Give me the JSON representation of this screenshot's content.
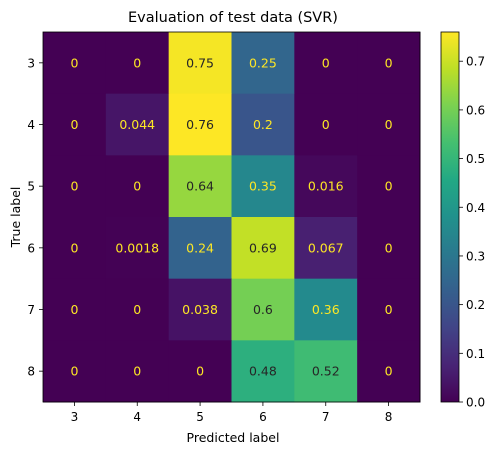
{
  "chart_data": {
    "type": "heatmap",
    "title": "Evaluation of test data (SVR)",
    "xlabel": "Predicted label",
    "ylabel": "True label",
    "x_categories": [
      "3",
      "4",
      "5",
      "6",
      "7",
      "8"
    ],
    "y_categories": [
      "3",
      "4",
      "5",
      "6",
      "7",
      "8"
    ],
    "values": [
      [
        0,
        0,
        0.75,
        0.25,
        0,
        0
      ],
      [
        0,
        0.044,
        0.76,
        0.2,
        0,
        0
      ],
      [
        0,
        0,
        0.64,
        0.35,
        0.016,
        0
      ],
      [
        0,
        0.0018,
        0.24,
        0.69,
        0.067,
        0
      ],
      [
        0,
        0,
        0.038,
        0.6,
        0.36,
        0
      ],
      [
        0,
        0,
        0,
        0.48,
        0.52,
        0
      ]
    ],
    "cell_labels": [
      [
        "0",
        "0",
        "0.75",
        "0.25",
        "0",
        "0"
      ],
      [
        "0",
        "0.044",
        "0.76",
        "0.2",
        "0",
        "0"
      ],
      [
        "0",
        "0",
        "0.64",
        "0.35",
        "0.016",
        "0"
      ],
      [
        "0",
        "0.0018",
        "0.24",
        "0.69",
        "0.067",
        "0"
      ],
      [
        "0",
        "0",
        "0.038",
        "0.6",
        "0.36",
        "0"
      ],
      [
        "0",
        "0",
        "0",
        "0.48",
        "0.52",
        "0"
      ]
    ],
    "colormap": "viridis",
    "color_range": [
      0,
      0.76
    ],
    "colorbar_ticks": [
      "0.0",
      "0.1",
      "0.2",
      "0.3",
      "0.4",
      "0.5",
      "0.6",
      "0.7"
    ],
    "colorbar_tick_values": [
      0,
      0.1,
      0.2,
      0.3,
      0.4,
      0.5,
      0.6,
      0.7
    ],
    "text_color_dark_cells": "#fde725",
    "text_color_bright_cells": "#262626"
  }
}
